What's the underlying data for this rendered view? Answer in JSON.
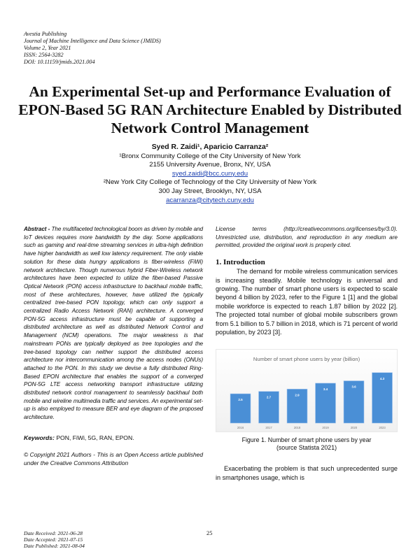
{
  "header": {
    "lines": [
      "Avestia Publishing",
      "Journal of Machine Intelligence and Data Science (JMIDS)",
      "Volume 2, Year 2021",
      "ISSN: 2564-3282",
      "DOI: 10.11159/jmids.2021.004"
    ]
  },
  "title": "An Experimental Set-up and Performance Evaluation of EPON-Based 5G RAN Architecture Enabled by Distributed Network Control Management",
  "authors": {
    "names": "Syed R. Zaidi¹, Aparicio Carranza²",
    "aff1": "¹Bronx Community College of the City University of New York",
    "addr1": "2155 University Avenue, Bronx, NY, USA",
    "email1": "syed.zaidi@bcc.cuny.edu",
    "aff2": "²New York City College of Technology of the City University of New York",
    "addr2": "300 Jay Street, Brooklyn, NY, USA",
    "email2": "acarranza@citytech.cuny.edu"
  },
  "abstract": {
    "label": "Abstract -",
    "text": " The multifaceted technological boom as driven by mobile and IoT devices requires more bandwidth by the day. Some applications such as gaming and real-time streaming services in ultra-high definition have higher bandwidth as well low latency requirement. The only viable solution for these data hungry applications is fiber-wireless (FiWi) network architecture. Though numerous hybrid Fiber-Wireless network architectures have been expected to utilize the fiber-based Passive Optical Network (PON) access infrastructure to backhaul mobile traffic, most of these architectures, however, have utilized the typically centralized tree-based PON topology, which can only support a centralized Radio Access Network (RAN) architecture. A converged PON-5G access infrastructure must be capable of supporting a distributed architecture as well as distributed Network Control and Management (NCM) operations. The major weakness is that mainstream PONs are typically deployed as tree topologies and the tree-based topology can neither support the distributed access architecture nor intercommunication among the access nodes (ONUs) attached to the PON. In this study we devise a fully distributed Ring-Based EPON architecture that enables the support of a converged PON-5G LTE access networking transport infrastructure utilizing distributed network control management to seamlessly backhaul both mobile and wireline multimedia traffic and services. An experimental set-up is also employed to measure BER and eye diagram of the proposed architecture."
  },
  "keywords": {
    "label": "Keywords:",
    "text": " PON, FiWi, 5G, RAN, EPON."
  },
  "copyright": "© Copyright 2021 Authors - This is an Open Access article published under the Creative Commons Attribution",
  "license": "License terms (http://creativecommons.org/licenses/by/3.0). Unrestricted use, distribution, and reproduction in any medium are permitted, provided the original work is properly cited.",
  "intro": {
    "heading": "1. Introduction",
    "para": "The demand for mobile wireless communication services is increasing steadily. Mobile technology is universal and growing. The number of smart phone users is expected to scale beyond 4 billion by 2023, refer to the Figure 1 [1] and the global mobile workforce is expected to reach 1.87 billion by 2022 [2]. The projected total number of global mobile subscribers grown from 5.1 billion to 5.7 billion in 2018, which is 71 percent of world population, by 2023 [3].",
    "para2": "Exacerbating the problem is that such unprecedented surge in smartphones usage, which is"
  },
  "figure": {
    "caption1": "Figure 1. Number of smart phone users by year",
    "caption2": "(source Statista 2021)"
  },
  "chart_data": {
    "type": "bar",
    "title": "Number of smart phone users by year (billion)",
    "categories": [
      "2016",
      "2017",
      "2018",
      "2019",
      "2020",
      "2023"
    ],
    "values": [
      2.5,
      2.7,
      2.9,
      3.4,
      3.6,
      4.3
    ],
    "labels": [
      "2.5",
      "2.7",
      "2.9",
      "3.4",
      "3.6",
      "4.3"
    ],
    "bar_color": "#4a8fd6",
    "ylim": [
      0,
      5
    ],
    "grid": false
  },
  "footer": {
    "received": "Date Received: 2021-06-28",
    "accepted": "Date Accepted: 2021-07-15",
    "published": "Date Published: 2021-08-04",
    "page": "25"
  }
}
